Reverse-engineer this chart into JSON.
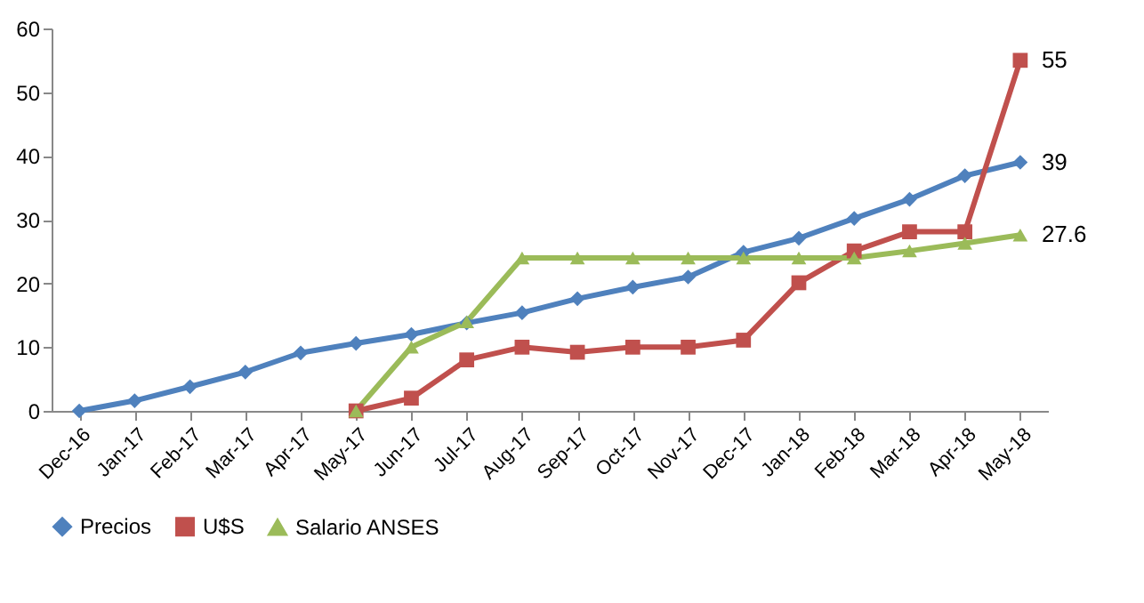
{
  "chart_data": {
    "type": "line",
    "categories": [
      "Dec-16",
      "Jan-17",
      "Feb-17",
      "Mar-17",
      "Apr-17",
      "May-17",
      "Jun-17",
      "Jul-17",
      "Aug-17",
      "Sep-17",
      "Oct-17",
      "Nov-17",
      "Dec-17",
      "Jan-18",
      "Feb-18",
      "Mar-18",
      "Apr-18",
      "May-18"
    ],
    "series": [
      {
        "name": "Precios",
        "color": "#4f81bd",
        "marker": "diamond",
        "values": [
          0,
          1.6,
          3.8,
          6.1,
          9.1,
          10.6,
          12,
          13.8,
          15.4,
          17.6,
          19.4,
          21,
          24.9,
          27.1,
          30.2,
          33.2,
          36.9,
          39
        ],
        "value_labels": [
          null,
          null,
          null,
          null,
          null,
          null,
          null,
          null,
          null,
          null,
          null,
          null,
          null,
          null,
          null,
          null,
          null,
          "39"
        ]
      },
      {
        "name": "U$S",
        "color": "#c0504d",
        "marker": "square",
        "values": [
          null,
          null,
          null,
          null,
          null,
          0,
          2,
          8,
          10,
          9.2,
          10,
          10,
          11.1,
          20.1,
          25.1,
          28.1,
          28.1,
          55
        ],
        "value_labels": [
          null,
          null,
          null,
          null,
          null,
          null,
          null,
          null,
          null,
          null,
          null,
          null,
          null,
          null,
          null,
          null,
          null,
          "55"
        ]
      },
      {
        "name": "Salario ANSES",
        "color": "#9bbb59",
        "marker": "triangle",
        "values": [
          null,
          null,
          null,
          null,
          null,
          0,
          10,
          14,
          24,
          24,
          24,
          24,
          24,
          24,
          24,
          25.1,
          26.3,
          27.6
        ],
        "value_labels": [
          null,
          null,
          null,
          null,
          null,
          null,
          null,
          null,
          null,
          null,
          null,
          null,
          null,
          null,
          null,
          null,
          null,
          "27.6"
        ]
      }
    ],
    "ylim": [
      0,
      60
    ],
    "yticks": [
      0,
      10,
      20,
      30,
      40,
      50,
      60
    ],
    "grid": false,
    "legend": "bottom"
  }
}
